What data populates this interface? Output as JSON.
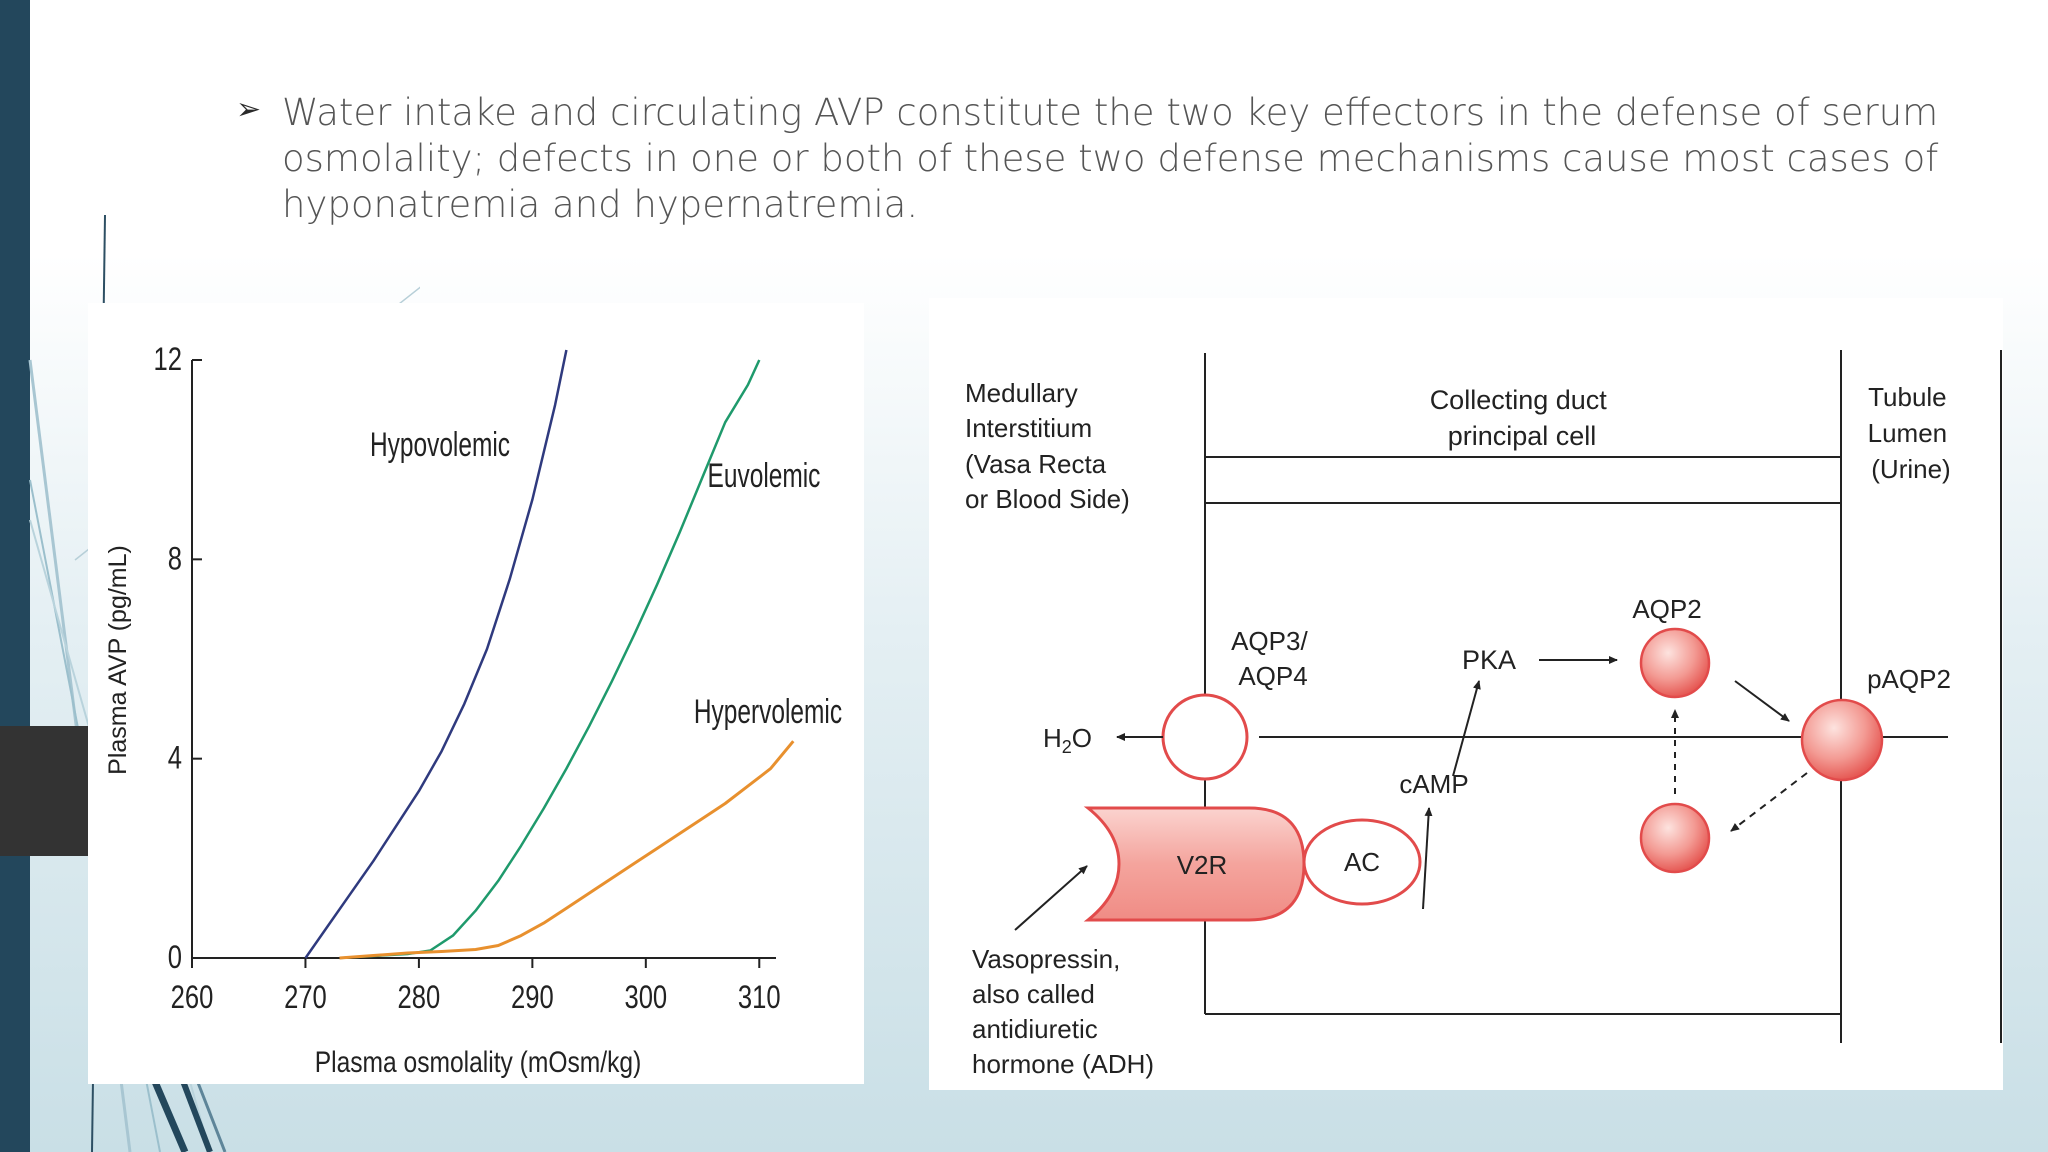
{
  "slide": {
    "bullet_symbol": "➢",
    "bullet_text": "Water intake and circulating AVP constitute the two key effectors in the defense of serum osmolality; defects in one or both of these two defense mechanisms cause most cases of hyponatremia and hypernatremia."
  },
  "chart_data": {
    "type": "line",
    "title": "",
    "xlabel": "Plasma osmolality (mOsm/kg)",
    "ylabel": "Plasma AVP (pg/mL)",
    "xlim": [
      260,
      315
    ],
    "ylim": [
      0,
      12
    ],
    "xticks": [
      260,
      270,
      280,
      290,
      300,
      310
    ],
    "yticks": [
      0,
      4,
      8,
      12
    ],
    "grid": false,
    "legend": "inline labels",
    "series": [
      {
        "name": "Hypovolemic",
        "color": "#2f3a7e",
        "x": [
          270,
          272,
          274,
          276,
          278,
          280,
          282,
          284,
          286,
          288,
          290,
          292,
          293
        ],
        "y": [
          0,
          0.65,
          1.3,
          1.95,
          2.65,
          3.35,
          4.15,
          5.1,
          6.2,
          7.6,
          9.2,
          11.1,
          12.2
        ]
      },
      {
        "name": "Euvolemic",
        "color": "#1f9a6c",
        "x": [
          273,
          276,
          279,
          281,
          283,
          285,
          287,
          289,
          291,
          293,
          295,
          297,
          299,
          301,
          303,
          305,
          307,
          309,
          310
        ],
        "y": [
          0,
          0.04,
          0.08,
          0.15,
          0.45,
          0.95,
          1.55,
          2.25,
          3.0,
          3.8,
          4.65,
          5.55,
          6.5,
          7.5,
          8.55,
          9.65,
          10.75,
          11.5,
          12
        ]
      },
      {
        "name": "Hypervolemic",
        "color": "#e8902e",
        "x": [
          273,
          276,
          279,
          282,
          285,
          287,
          289,
          291,
          293,
          295,
          297,
          299,
          301,
          303,
          305,
          307,
          309,
          311,
          313
        ],
        "y": [
          0,
          0.05,
          0.1,
          0.13,
          0.17,
          0.25,
          0.45,
          0.7,
          1.0,
          1.3,
          1.6,
          1.9,
          2.2,
          2.5,
          2.8,
          3.1,
          3.45,
          3.8,
          4.35
        ]
      }
    ]
  },
  "diagram": {
    "left_heading": [
      "Medullary",
      "Interstitium",
      "(Vasa Recta",
      "or Blood Side)"
    ],
    "cell_heading": [
      "Collecting duct",
      "principal cell"
    ],
    "right_heading": [
      "Tubule",
      "Lumen",
      "(Urine)"
    ],
    "aqp34": [
      "AQP3/",
      "AQP4"
    ],
    "h2o_base": "H",
    "h2o_sub": "2",
    "h2o_end": "O",
    "pka": "PKA",
    "aqp2": "AQP2",
    "paqp2": "pAQP2",
    "camp": "cAMP",
    "v2r": "V2R",
    "ac": "AC",
    "vasopressin": [
      "Vasopressin,",
      "also called",
      "antidiuretic",
      "hormone (ADH)"
    ],
    "colors": {
      "red": "#e24b4b",
      "pink_fill": "#f7a9a5",
      "line": "#222222"
    }
  }
}
